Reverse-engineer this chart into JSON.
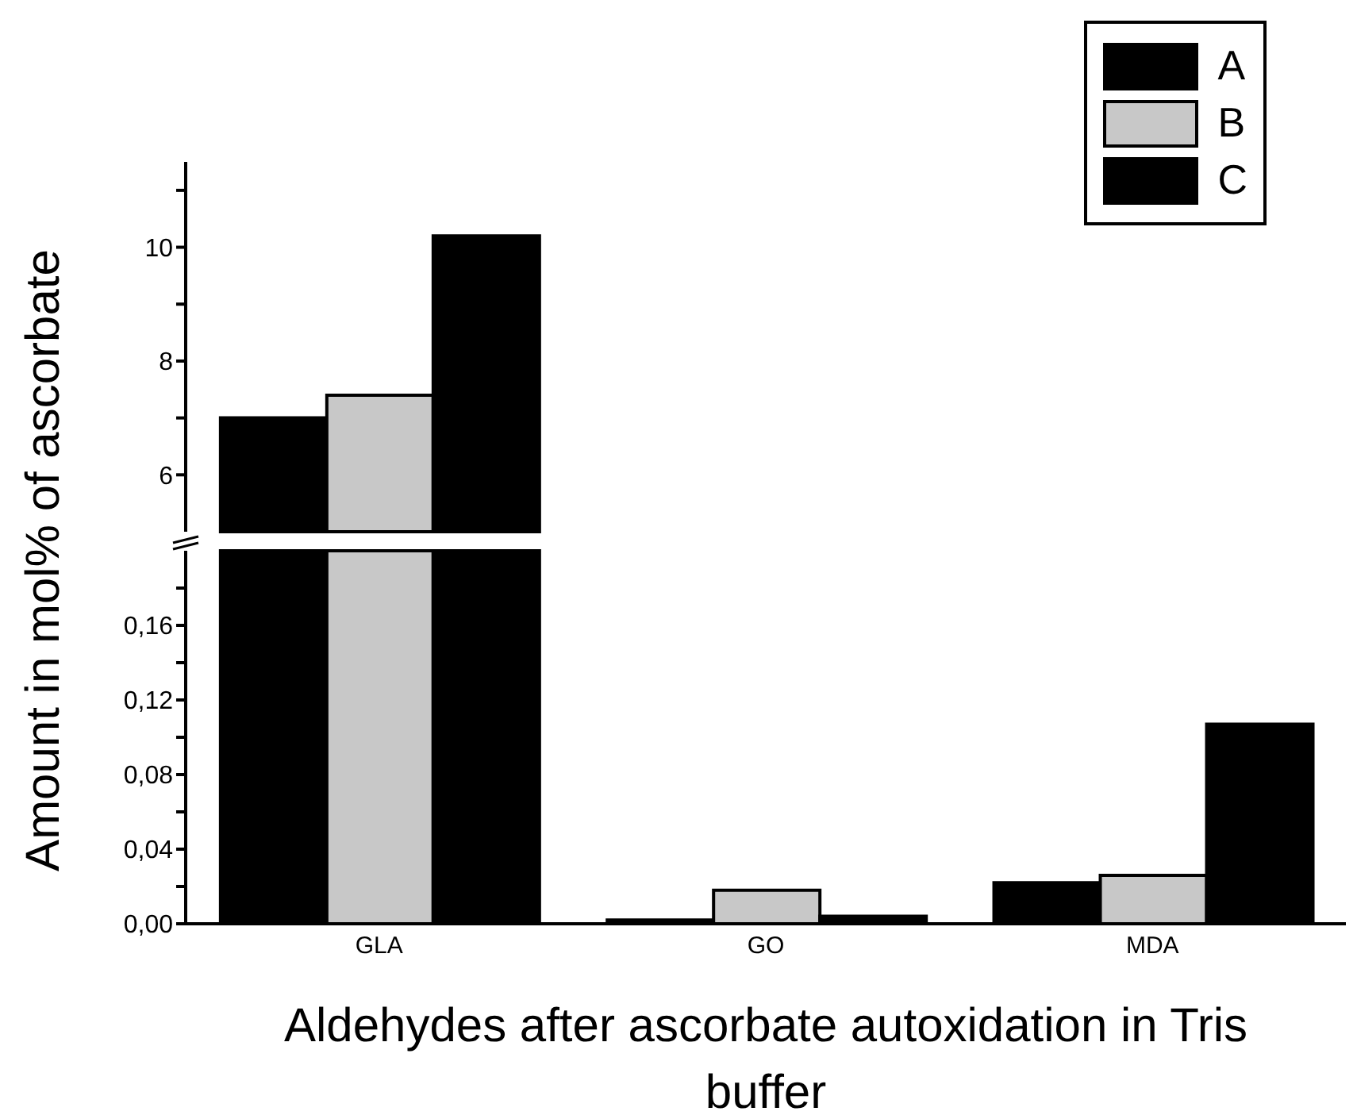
{
  "chart_data": [
    {
      "type": "bar",
      "ylabel": "Amount in mol% of ascorbate",
      "categories": [
        null
      ],
      "series": [
        {
          "name": "A",
          "color": "#000000",
          "values": [
            7.0
          ]
        },
        {
          "name": "B",
          "color": "#c8c8c8",
          "values": [
            7.4
          ]
        },
        {
          "name": "C",
          "color": "#000000",
          "values": [
            10.2
          ]
        }
      ],
      "ylim": [
        5,
        11.5
      ],
      "yticks": [
        6,
        {
          "value": 7,
          "label": null
        },
        8,
        {
          "value": 9,
          "label": null
        },
        10,
        {
          "value": 11,
          "label": null
        }
      ],
      "tick_labels": "y",
      "legend": "top right",
      "grid": false
    },
    {
      "type": "bar",
      "xlabel": "Aldehydes after ascorbate autoxidation in Tris buffer",
      "categories": [
        "GLA",
        "GO",
        "MDA"
      ],
      "series": [
        {
          "color": "#000000",
          "values": [
            null,
            0.002,
            0.022
          ]
        },
        {
          "color": "#c8c8c8",
          "values": [
            null,
            0.018,
            0.026
          ]
        },
        {
          "color": "#000000",
          "values": [
            null,
            0.004,
            0.107
          ]
        }
      ],
      "ylim": [
        0,
        0.2
      ],
      "yticks": [
        {
          "value": 0,
          "label": "0,00"
        },
        {
          "value": 0.02,
          "label": null
        },
        {
          "value": 0.04,
          "label": "0,04"
        },
        {
          "value": 0.06,
          "label": null
        },
        {
          "value": 0.08,
          "label": "0,08"
        },
        {
          "value": 0.1,
          "label": null
        },
        {
          "value": 0.12,
          "label": "0,12"
        },
        {
          "value": 0.14,
          "label": null
        },
        {
          "value": 0.16,
          "label": "0,16"
        },
        {
          "value": 0.18,
          "label": null
        }
      ],
      "grid": false
    }
  ]
}
